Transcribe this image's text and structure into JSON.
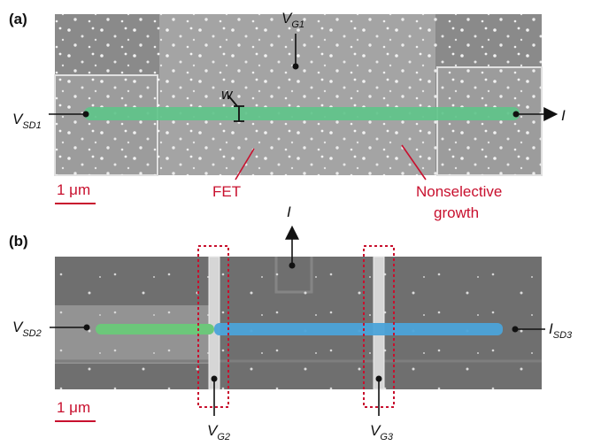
{
  "panel_a": {
    "label": "(a)",
    "gate": {
      "symbol": "V",
      "subscript": "G1"
    },
    "width_label": "w",
    "source": {
      "symbol": "V",
      "subscript": "SD1"
    },
    "current": "I",
    "scale_bar": "1 μm",
    "fet_label": "FET",
    "growth_label": [
      "Nonselective",
      "growth"
    ]
  },
  "panel_b": {
    "label": "(b)",
    "current": "I",
    "source": {
      "symbol": "V",
      "subscript": "SD2"
    },
    "drain": {
      "symbol": "I",
      "subscript": "SD3"
    },
    "gate_left": {
      "symbol": "V",
      "subscript": "G2"
    },
    "gate_right": {
      "symbol": "V",
      "subscript": "G3"
    },
    "scale_bar": "1 μm"
  }
}
